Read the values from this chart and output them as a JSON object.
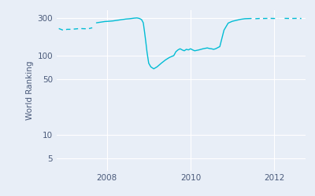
{
  "ylabel": "World Ranking",
  "line_color": "#00bcd4",
  "background_color": "#dce6f0",
  "plot_bg_color": "#e8eef7",
  "yticks": [
    5,
    10,
    50,
    100,
    300
  ],
  "ytick_labels": [
    "5",
    "10",
    "50",
    "100",
    "300"
  ],
  "xticks": [
    2008,
    2010,
    2012
  ],
  "xlim": [
    2006.8,
    2012.75
  ],
  "ylim_log": [
    3.5,
    380
  ],
  "segments": [
    {
      "x": [
        2006.85,
        2006.95,
        2007.05,
        2007.15,
        2007.35,
        2007.55,
        2007.65
      ],
      "y": [
        220,
        210,
        215,
        215,
        220,
        218,
        225
      ],
      "solid": false
    },
    {
      "x": [
        2007.75,
        2007.85,
        2007.95,
        2008.05,
        2008.15,
        2008.25,
        2008.35,
        2008.45,
        2008.55,
        2008.65,
        2008.72,
        2008.78,
        2008.83,
        2008.87,
        2008.9,
        2008.93,
        2008.96,
        2009.0,
        2009.05,
        2009.12,
        2009.2,
        2009.3,
        2009.4,
        2009.5,
        2009.6,
        2009.65,
        2009.7,
        2009.75,
        2009.8,
        2009.85,
        2009.9,
        2009.95,
        2010.0,
        2010.05,
        2010.1,
        2010.2,
        2010.3,
        2010.4,
        2010.45,
        2010.5,
        2010.55,
        2010.6,
        2010.7,
        2010.8,
        2010.9,
        2011.0,
        2011.1,
        2011.2,
        2011.3,
        2011.45
      ],
      "y": [
        260,
        265,
        270,
        272,
        275,
        280,
        285,
        290,
        293,
        298,
        300,
        295,
        285,
        260,
        200,
        150,
        110,
        80,
        72,
        68,
        72,
        80,
        88,
        95,
        100,
        112,
        118,
        122,
        118,
        115,
        120,
        118,
        122,
        118,
        115,
        118,
        122,
        125,
        123,
        122,
        120,
        122,
        130,
        210,
        258,
        272,
        280,
        288,
        293,
        295
      ],
      "solid": true
    },
    {
      "x": [
        2011.55,
        2011.65,
        2011.75,
        2011.9,
        2012.0,
        2012.1
      ],
      "y": [
        293,
        295,
        295,
        296,
        295,
        295
      ],
      "solid": false
    },
    {
      "x": [
        2012.25,
        2012.4,
        2012.55,
        2012.65
      ],
      "y": [
        296,
        295,
        296,
        295
      ],
      "solid": false
    }
  ]
}
